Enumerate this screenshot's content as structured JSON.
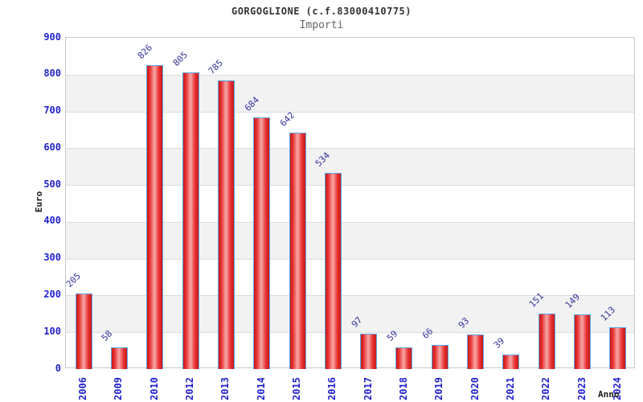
{
  "title": "GORGOGLIONE (c.f.83000410775)",
  "subtitle": "Importi",
  "chart_data": {
    "type": "bar",
    "categories": [
      "2006",
      "2009",
      "2010",
      "2012",
      "2013",
      "2014",
      "2015",
      "2016",
      "2017",
      "2018",
      "2019",
      "2020",
      "2021",
      "2022",
      "2023",
      "2024"
    ],
    "values": [
      205,
      58,
      826,
      805,
      785,
      684,
      642,
      534,
      97,
      59,
      66,
      93,
      39,
      151,
      149,
      113
    ],
    "title": "GORGOGLIONE (c.f.83000410775)",
    "subtitle": "Importi",
    "xlabel": "Anno",
    "ylabel": "Euro",
    "ylim": [
      0,
      900
    ],
    "ytick_step": 100,
    "legend": "none",
    "grid": "horizontal-bands",
    "colors": {
      "title_text": "#333333",
      "subtitle_text": "#666666",
      "axis_title_text": "#1a1a1a",
      "tick_label": "#2222cc",
      "value_label": "#333399",
      "band_gray": "#f2f2f2",
      "grid_line": "#dcdcdc",
      "plot_border": "#c9c9c9",
      "bar_border": "#5ca8e8",
      "bar_dark": "#c51a1a",
      "bar_mid": "#e93030",
      "bar_light": "#f7a8a8"
    }
  }
}
